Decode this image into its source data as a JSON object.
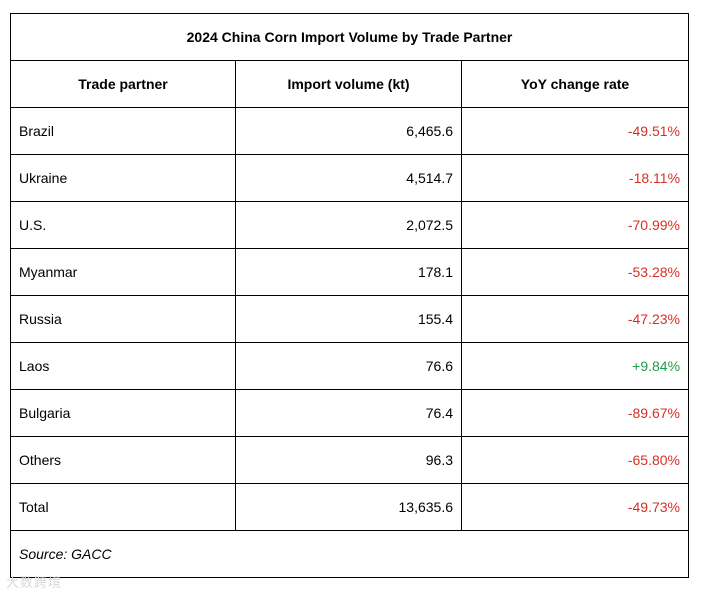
{
  "table": {
    "title": "2024 China Corn Import Volume by Trade Partner",
    "headers": [
      "Trade partner",
      "Import volume (kt)",
      "YoY change rate"
    ],
    "rows": [
      {
        "partner": "Brazil",
        "volume": "6,465.6",
        "yoy": "-49.51%"
      },
      {
        "partner": "Ukraine",
        "volume": "4,514.7",
        "yoy": "-18.11%"
      },
      {
        "partner": "U.S.",
        "volume": "2,072.5",
        "yoy": "-70.99%"
      },
      {
        "partner": "Myanmar",
        "volume": "178.1",
        "yoy": "-53.28%"
      },
      {
        "partner": "Russia",
        "volume": "155.4",
        "yoy": "-47.23%"
      },
      {
        "partner": "Laos",
        "volume": "76.6",
        "yoy": "+9.84%"
      },
      {
        "partner": "Bulgaria",
        "volume": "76.4",
        "yoy": "-89.67%"
      },
      {
        "partner": "Others",
        "volume": "96.3",
        "yoy": "-65.80%"
      },
      {
        "partner": "Total",
        "volume": "13,635.6",
        "yoy": "-49.73%"
      }
    ],
    "source": "Source: GACC"
  },
  "colors": {
    "negative": "#d93025",
    "positive": "#1e9e4a"
  },
  "watermark": "大数跨境"
}
